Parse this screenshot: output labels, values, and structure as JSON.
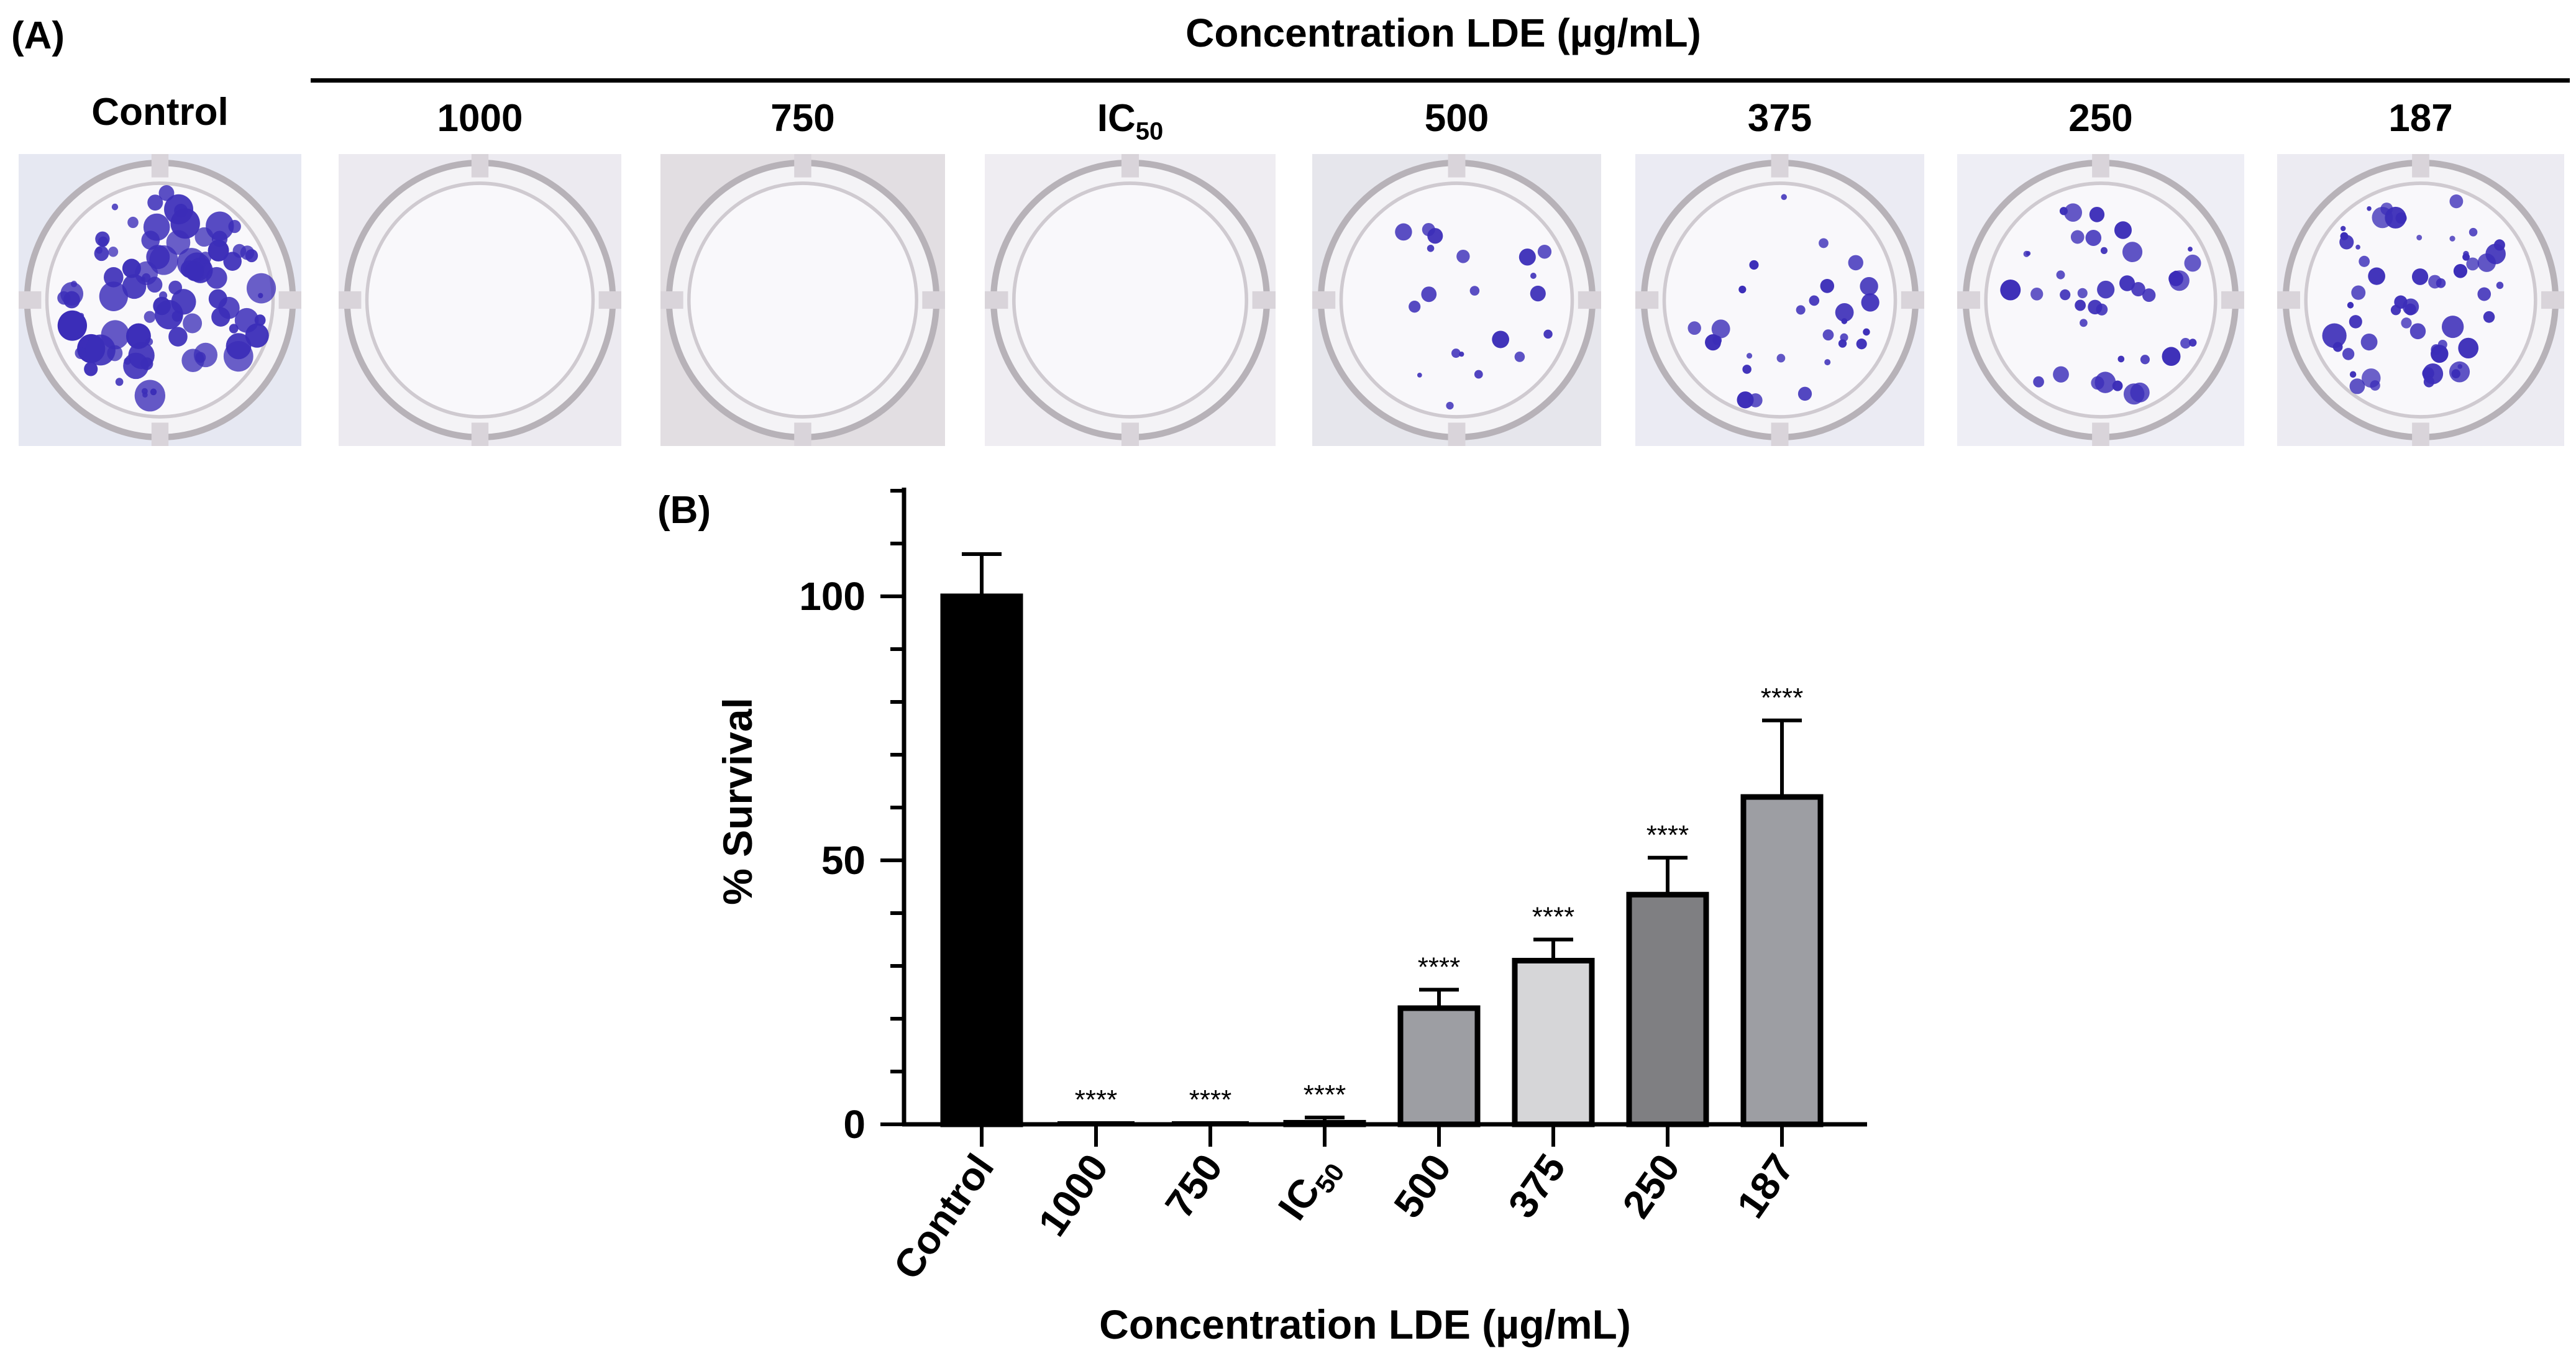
{
  "panel_a": {
    "label": "(A)",
    "title": "Concentration LDE (µg/mL)",
    "control_label": "Control",
    "wells": [
      {
        "label": "Control",
        "colony_density": 1.0,
        "background": "#e6e8f2"
      },
      {
        "label": "1000",
        "colony_density": 0.0,
        "background": "#eceaf0"
      },
      {
        "label": "750",
        "colony_density": 0.0,
        "background": "#e2dee2"
      },
      {
        "label": "IC50",
        "label_main": "IC",
        "label_sub": "50",
        "colony_density": 0.0,
        "background": "#efedf2"
      },
      {
        "label": "500",
        "colony_density": 0.22,
        "background": "#e6e6ec"
      },
      {
        "label": "375",
        "colony_density": 0.31,
        "background": "#ebebf3"
      },
      {
        "label": "250",
        "colony_density": 0.44,
        "background": "#eeeef5"
      },
      {
        "label": "187",
        "colony_density": 0.62,
        "background": "#ecebf2"
      }
    ],
    "colony_color": "#3b2db8"
  },
  "panel_b": {
    "label": "(B)"
  },
  "chart_data": {
    "type": "bar",
    "xlabel": "Concentration LDE (µg/mL)",
    "ylabel": "% Survival",
    "ylim": [
      0,
      120
    ],
    "yticks": [
      0,
      50,
      100
    ],
    "categories": [
      "Control",
      "1000",
      "750",
      "IC50",
      "500",
      "375",
      "250",
      "187"
    ],
    "category_display": [
      {
        "main": "Control",
        "sub": ""
      },
      {
        "main": "1000",
        "sub": ""
      },
      {
        "main": "750",
        "sub": ""
      },
      {
        "main": "IC",
        "sub": "50"
      },
      {
        "main": "500",
        "sub": ""
      },
      {
        "main": "375",
        "sub": ""
      },
      {
        "main": "250",
        "sub": ""
      },
      {
        "main": "187",
        "sub": ""
      }
    ],
    "values": [
      100,
      0,
      0,
      0.3,
      22,
      31,
      43.5,
      62
    ],
    "errors": [
      8,
      0,
      0,
      1,
      3.5,
      4,
      7,
      14.5
    ],
    "significance": [
      "",
      "****",
      "****",
      "****",
      "****",
      "****",
      "****",
      "****"
    ],
    "bar_colors": [
      "#000000",
      "#9a9ba0",
      "#9a9ba0",
      "#9a9ba0",
      "#9d9ea3",
      "#d6d6d8",
      "#7f7f82",
      "#9d9ea3"
    ],
    "grid": false,
    "legend": "none"
  }
}
